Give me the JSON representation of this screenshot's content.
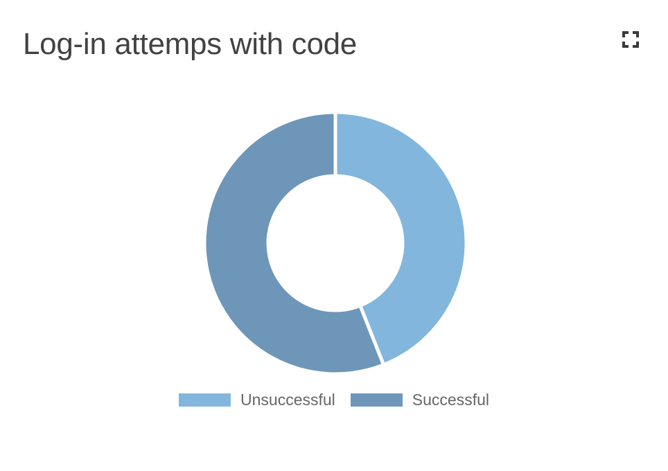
{
  "card": {
    "title": "Log-in attemps with code",
    "expand_icon": "fullscreen-icon"
  },
  "colors": {
    "unsuccessful": "#82b6dc",
    "successful": "#6e96b8",
    "title": "#424242",
    "legend_text": "#666666"
  },
  "chart_data": {
    "type": "pie",
    "variant": "doughnut",
    "title": "Log-in attemps with code",
    "categories": [
      "Unsuccessful",
      "Successful"
    ],
    "values": [
      44,
      56
    ],
    "colors": [
      "#82b6dc",
      "#6e96b8"
    ],
    "legend_position": "bottom",
    "grid": false
  }
}
